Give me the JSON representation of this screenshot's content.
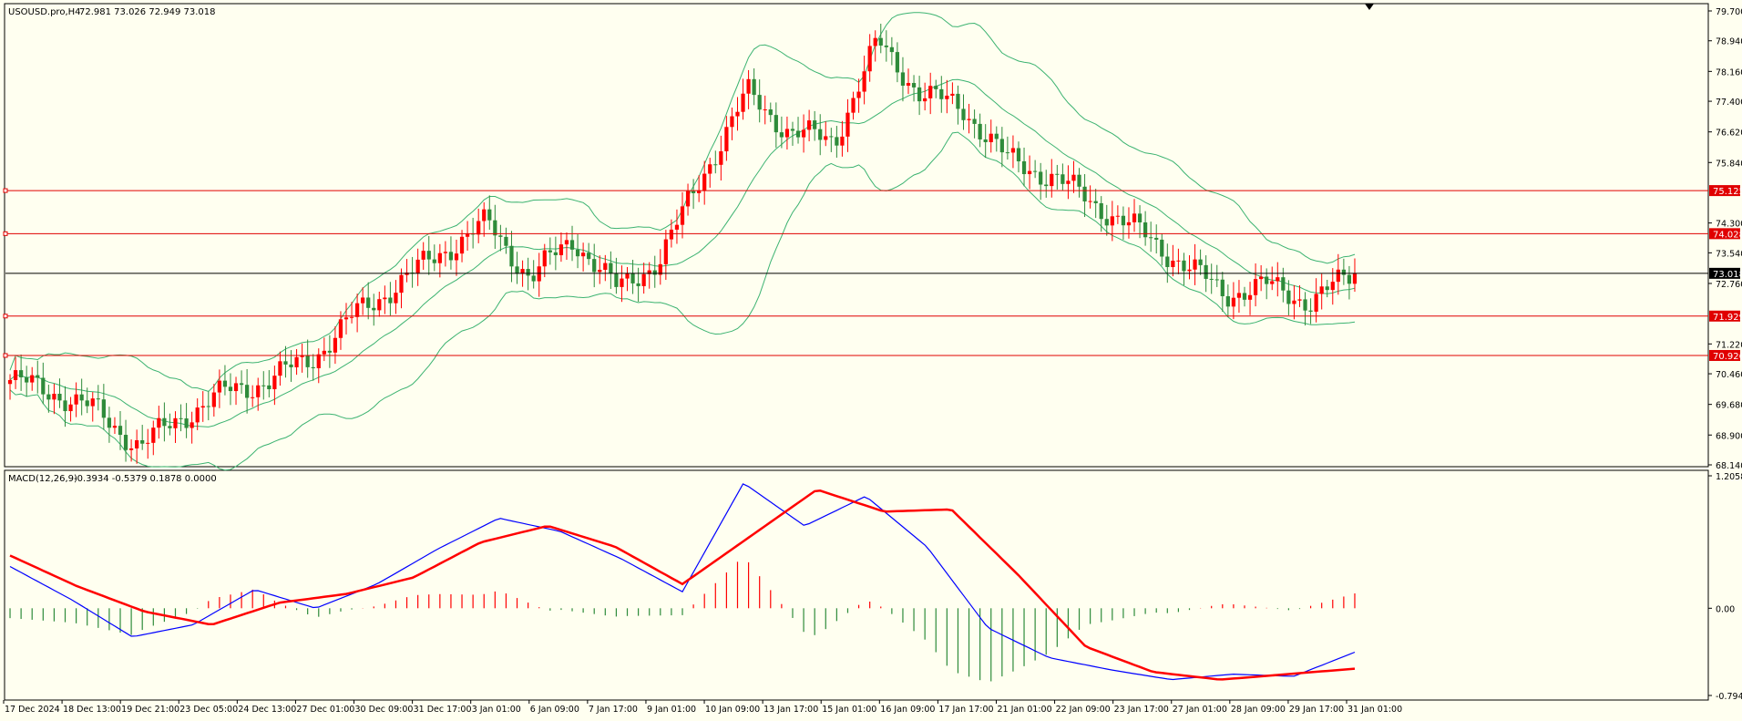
{
  "window": {
    "symbol_header": "USOUSD.pro,H4",
    "ohlc_header": "72.981 73.026 72.949 73.018"
  },
  "macd_header": {
    "name": "MACD(12,26,9)",
    "values": "-0.3934 -0.5379 0.1878 0.0000"
  },
  "colors": {
    "background": "#fffff0",
    "bull_candle": "#ff0000",
    "bear_candle": "#2e8b3a",
    "bands": "#3cb371",
    "hline": "#e00000",
    "price_line": "#000000",
    "macd_line": "#0000ff",
    "signal_line": "#ff0000",
    "hist_pos": "#ff0000",
    "hist_neg": "#2e8b3a"
  },
  "chart_data": [
    {
      "type": "candlestick",
      "y_range": [
        68.14,
        79.7
      ],
      "y_ticks": [
        "79.700",
        "78.940",
        "78.160",
        "77.400",
        "76.620",
        "75.840",
        "74.300",
        "73.540",
        "72.760",
        "71.220",
        "70.460",
        "69.680",
        "68.900",
        "68.140"
      ],
      "x_ticks": [
        "17 Dec 2024",
        "18 Dec 13:00",
        "19 Dec 21:00",
        "23 Dec 05:00",
        "24 Dec 13:00",
        "27 Dec 01:00",
        "30 Dec 09:00",
        "31 Dec 17:00",
        "3 Jan 01:00",
        "6 Jan 09:00",
        "7 Jan 17:00",
        "9 Jan 01:00",
        "10 Jan 09:00",
        "13 Jan 17:00",
        "15 Jan 01:00",
        "16 Jan 09:00",
        "17 Jan 17:00",
        "21 Jan 01:00",
        "22 Jan 09:00",
        "23 Jan 17:00",
        "27 Jan 01:00",
        "28 Jan 09:00",
        "29 Jan 17:00",
        "31 Jan 01:00"
      ],
      "current_price": "73.018",
      "horizontal_levels": [
        "75.125",
        "74.028",
        "71.929",
        "70.926"
      ],
      "series": [
        {
          "name": "USOUSD.pro,H4",
          "close_anchors": [
            70.3,
            70.0,
            69.5,
            68.6,
            69.4,
            70.0,
            70.3,
            70.9,
            72.0,
            72.8,
            73.6,
            74.3,
            72.9,
            73.9,
            72.6,
            73.4,
            75.6,
            77.6,
            76.6,
            76.4,
            78.9,
            77.6,
            77.2,
            75.9,
            75.5,
            74.8,
            74.1,
            73.3,
            72.5,
            72.7,
            72.3,
            73.02
          ]
        }
      ]
    },
    {
      "type": "macd",
      "y_ticks": [
        "1.2058",
        "0.00",
        "-0.7941"
      ],
      "y_range": [
        -0.7941,
        1.2058
      ],
      "series": [
        {
          "name": "MACD(12,26,9)",
          "macd_anchors": [
            0.38,
            0.08,
            -0.26,
            -0.15,
            0.17,
            0.0,
            0.22,
            0.54,
            0.82,
            0.7,
            0.45,
            0.15,
            1.14,
            0.75,
            1.02,
            0.56,
            -0.18,
            -0.45,
            -0.56,
            -0.65,
            -0.6,
            -0.62,
            -0.4
          ]
        },
        {
          "signal_anchors": [
            0.48,
            0.2,
            -0.03,
            -0.15,
            0.05,
            0.13,
            0.28,
            0.6,
            0.75,
            0.56,
            0.22,
            0.65,
            1.08,
            0.88,
            0.9,
            0.3,
            -0.35,
            -0.58,
            -0.65,
            -0.6,
            -0.55
          ]
        }
      ]
    }
  ]
}
